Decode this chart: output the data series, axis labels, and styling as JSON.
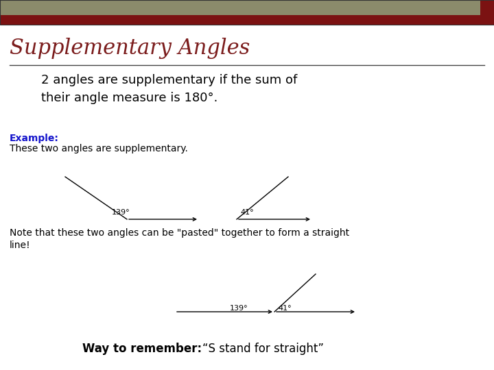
{
  "title": "Supplementary Angles",
  "title_color": "#7B1C1C",
  "bg_color": "#FFFFFF",
  "header_bar1_color": "#8B8B6B",
  "header_bar2_color": "#7B1212",
  "header_square_color": "#7B1212",
  "body_text": "2 angles are supplementary if the sum of\ntheir angle measure is 180°.",
  "body_text_color": "#000000",
  "example_label": "Example:",
  "example_label_color": "#1414CC",
  "example_text": "These two angles are supplementary.",
  "example_text_color": "#000000",
  "note_text": "Note that these two angles can be \"pasted\" together to form a straight\nline!",
  "note_text_color": "#000000",
  "way_label": "Way to remember:",
  "way_text": "“S stand for straight”",
  "way_text_color": "#000000",
  "angle1_label": "139°",
  "angle2_label": "41°",
  "angle1_label2": "139°",
  "angle2_label2": "41°"
}
